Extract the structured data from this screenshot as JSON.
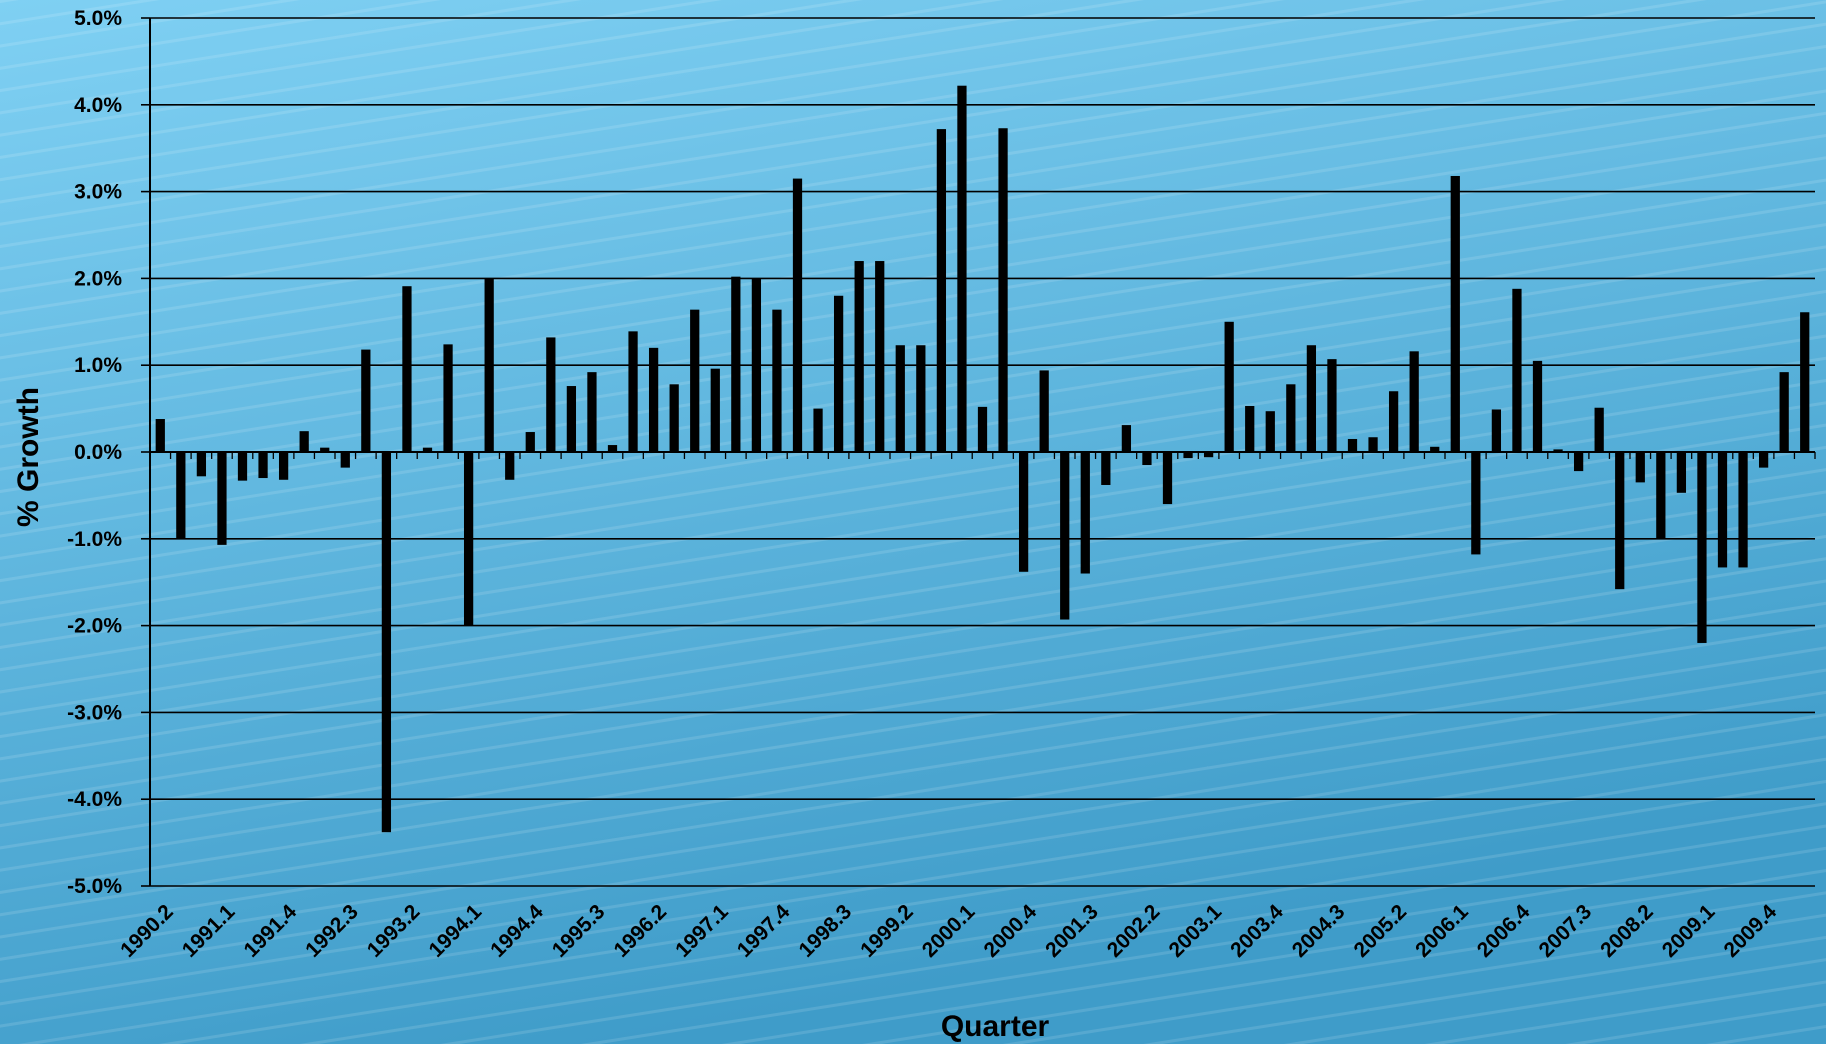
{
  "chart_data": {
    "type": "bar",
    "title": "",
    "xlabel": "Quarter",
    "ylabel": "% Growth",
    "ylim": [
      -5.0,
      5.0
    ],
    "ytick_step": 1.0,
    "ytick_labels": [
      "5.0%",
      "4.0%",
      "3.0%",
      "2.0%",
      "1.0%",
      "0.0%",
      "-1.0%",
      "-2.0%",
      "-3.0%",
      "-4.0%",
      "-5.0%"
    ],
    "grid": true,
    "legend": "none",
    "bar_color": "#000000",
    "background_colors": [
      "#7fd0f3",
      "#3f9cc9"
    ],
    "categories": [
      "1990.2",
      "1990.3",
      "1990.4",
      "1991.1",
      "1991.2",
      "1991.3",
      "1991.4",
      "1992.1",
      "1992.2",
      "1992.3",
      "1992.4",
      "1993.1",
      "1993.2",
      "1993.3",
      "1993.4",
      "1994.1",
      "1994.2",
      "1994.3",
      "1994.4",
      "1995.1",
      "1995.2",
      "1995.3",
      "1995.4",
      "1996.1",
      "1996.2",
      "1996.3",
      "1996.4",
      "1997.1",
      "1997.2",
      "1997.3",
      "1997.4",
      "1998.1",
      "1998.2",
      "1998.3",
      "1998.4",
      "1999.1",
      "1999.2",
      "1999.3",
      "1999.4",
      "2000.1",
      "2000.2",
      "2000.3",
      "2000.4",
      "2001.1",
      "2001.2",
      "2001.3",
      "2001.4",
      "2002.1",
      "2002.2",
      "2002.3",
      "2002.4",
      "2003.1",
      "2003.2",
      "2003.3",
      "2003.4",
      "2004.1",
      "2004.2",
      "2004.3",
      "2004.4",
      "2005.1",
      "2005.2",
      "2005.3",
      "2005.4",
      "2006.1",
      "2006.2",
      "2006.3",
      "2006.4",
      "2007.1",
      "2007.2",
      "2007.3",
      "2007.4",
      "2008.1",
      "2008.2",
      "2008.3",
      "2008.4",
      "2009.1",
      "2009.2",
      "2009.3",
      "2009.4",
      "2010.1",
      "2010.2"
    ],
    "x_tick_labels": [
      "1990.2",
      "1991.1",
      "1991.4",
      "1992.3",
      "1993.2",
      "1994.1",
      "1994.4",
      "1995.3",
      "1996.2",
      "1997.1",
      "1997.4",
      "1998.3",
      "1999.2",
      "2000.1",
      "2000.4",
      "2001.3",
      "2002.2",
      "2003.1",
      "2003.4",
      "2004.3",
      "2005.2",
      "2006.1",
      "2006.4",
      "2007.3",
      "2008.2",
      "2009.1",
      "2009.4"
    ],
    "series": [
      {
        "values": [
          0.38,
          -1.0,
          -0.28,
          -1.07,
          -0.33,
          -0.3,
          -0.32,
          0.24,
          0.05,
          -0.18,
          1.18,
          -4.38,
          1.91,
          0.05,
          1.24,
          -2.0,
          2.0,
          -0.32,
          0.23,
          1.32,
          0.76,
          0.92,
          0.08,
          1.39,
          1.2,
          0.78,
          1.64,
          0.96,
          2.02,
          2.0,
          1.64,
          3.15,
          0.5,
          1.8,
          2.2,
          2.2,
          1.23,
          1.23,
          3.72,
          4.22,
          0.52,
          3.73,
          -1.38,
          0.94,
          -1.93,
          -1.4,
          -0.38,
          0.31,
          -0.15,
          -0.6,
          -0.07,
          -0.06,
          1.5,
          0.53,
          0.47,
          0.78,
          1.23,
          1.07,
          0.15,
          0.17,
          0.7,
          1.16,
          0.06,
          3.18,
          -1.18,
          0.49,
          1.88,
          1.05,
          0.03,
          -0.22,
          0.51,
          -1.58,
          -0.35,
          -1.0,
          -0.47,
          -2.2,
          -1.33,
          -1.33,
          -0.18,
          0.92,
          1.61
        ]
      }
    ]
  }
}
